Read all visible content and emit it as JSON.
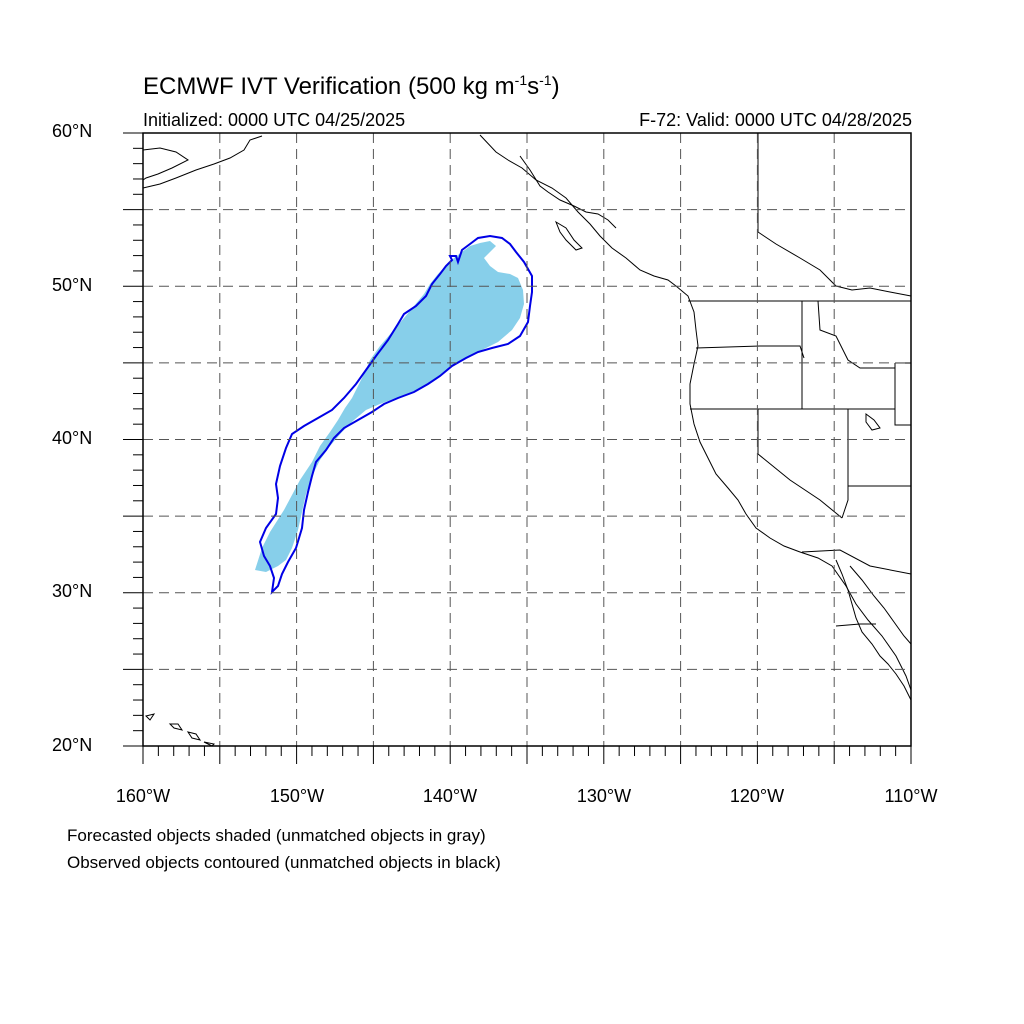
{
  "header": {
    "title_prefix": "ECMWF IVT Verification (500 kg m",
    "title_exp1": "-1",
    "title_mid": "s",
    "title_exp2": "-1",
    "title_suffix": ")",
    "initialized": "Initialized: 0000 UTC 04/25/2025",
    "valid": "F-72: Valid: 0000 UTC 04/28/2025"
  },
  "map": {
    "lon_range": [
      -160,
      -110
    ],
    "lat_range": [
      20,
      60
    ],
    "grid": true,
    "lat_labels": [
      "60°N",
      "50°N",
      "40°N",
      "30°N",
      "20°N"
    ],
    "lon_labels": [
      "160°W",
      "150°W",
      "140°W",
      "130°W",
      "120°W",
      "110°W"
    ],
    "colors": {
      "forecast_fill": "#87cfea",
      "observed_contour": "#0000e6",
      "coastline": "#000000",
      "grid": "#555555"
    }
  },
  "footer": {
    "note_forecast": "Forecasted objects shaded (unmatched objects in gray)",
    "note_observed": "Observed objects contoured (unmatched objects in black)"
  }
}
